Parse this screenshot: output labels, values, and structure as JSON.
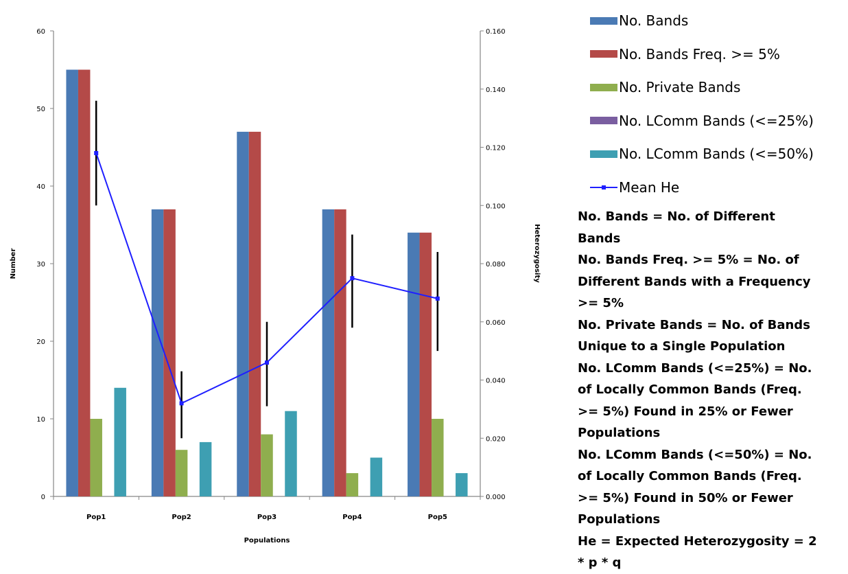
{
  "chart_data": {
    "type": "bar",
    "categories": [
      "Pop1",
      "Pop2",
      "Pop3",
      "Pop4",
      "Pop5"
    ],
    "xlabel": "Populations",
    "ylabel": "Number",
    "y2label": "Heterozygosity",
    "ylim": [
      0,
      60
    ],
    "y2lim": [
      0,
      0.16
    ],
    "yticks": [
      "0",
      "10",
      "20",
      "30",
      "40",
      "50",
      "60"
    ],
    "y2ticks": [
      "0.000",
      "0.020",
      "0.040",
      "0.060",
      "0.080",
      "0.100",
      "0.120",
      "0.140",
      "0.160"
    ],
    "grid": false,
    "legend_position": "right",
    "series": [
      {
        "name": "No. Bands",
        "color": "#4a7ab4",
        "values": [
          55,
          37,
          47,
          37,
          34
        ]
      },
      {
        "name": "No. Bands Freq. >= 5%",
        "color": "#b44a48",
        "values": [
          55,
          37,
          47,
          37,
          34
        ]
      },
      {
        "name": "No. Private Bands",
        "color": "#8fae4e",
        "values": [
          10,
          6,
          8,
          3,
          10
        ]
      },
      {
        "name": "No. LComm Bands (<=25%)",
        "color": "#7a5ea0",
        "values": [
          0,
          0,
          0,
          0,
          0
        ]
      },
      {
        "name": "No. LComm Bands (<=50%)",
        "color": "#3e9fb2",
        "values": [
          14,
          7,
          11,
          5,
          3
        ]
      }
    ],
    "line_series": {
      "name": "Mean He",
      "color": "#1f1fff",
      "axis": "secondary",
      "values": [
        0.118,
        0.032,
        0.046,
        0.075,
        0.068
      ],
      "error_low": [
        0.1,
        0.02,
        0.031,
        0.058,
        0.05
      ],
      "error_high": [
        0.136,
        0.043,
        0.06,
        0.09,
        0.084
      ]
    }
  },
  "legend": {
    "items": [
      {
        "label": "No. Bands",
        "color": "#4a7ab4",
        "kind": "bar"
      },
      {
        "label": "No. Bands Freq. >= 5%",
        "color": "#b44a48",
        "kind": "bar"
      },
      {
        "label": "No. Private Bands",
        "color": "#8fae4e",
        "kind": "bar"
      },
      {
        "label": "No. LComm Bands (<=25%)",
        "color": "#7a5ea0",
        "kind": "bar"
      },
      {
        "label": "No. LComm Bands (<=50%)",
        "color": "#3e9fb2",
        "kind": "bar"
      },
      {
        "label": "Mean He",
        "color": "#1f1fff",
        "kind": "line"
      }
    ]
  },
  "notes": {
    "lines": [
      "No. Bands = No. of Different",
      "Bands",
      "No. Bands Freq. >= 5% = No. of",
      "Different Bands with a Frequency",
      ">= 5%",
      "No. Private Bands = No. of Bands",
      "Unique to a Single Population",
      "No. LComm Bands (<=25%) = No.",
      "of Locally Common  Bands (Freq.",
      ">= 5%) Found in 25% or Fewer",
      "Populations",
      "No. LComm Bands (<=50%) = No.",
      "of Locally Common  Bands (Freq.",
      ">= 5%) Found in 50% or Fewer",
      "Populations",
      "He = Expected Heterozygosity = 2",
      "* p * q"
    ]
  }
}
